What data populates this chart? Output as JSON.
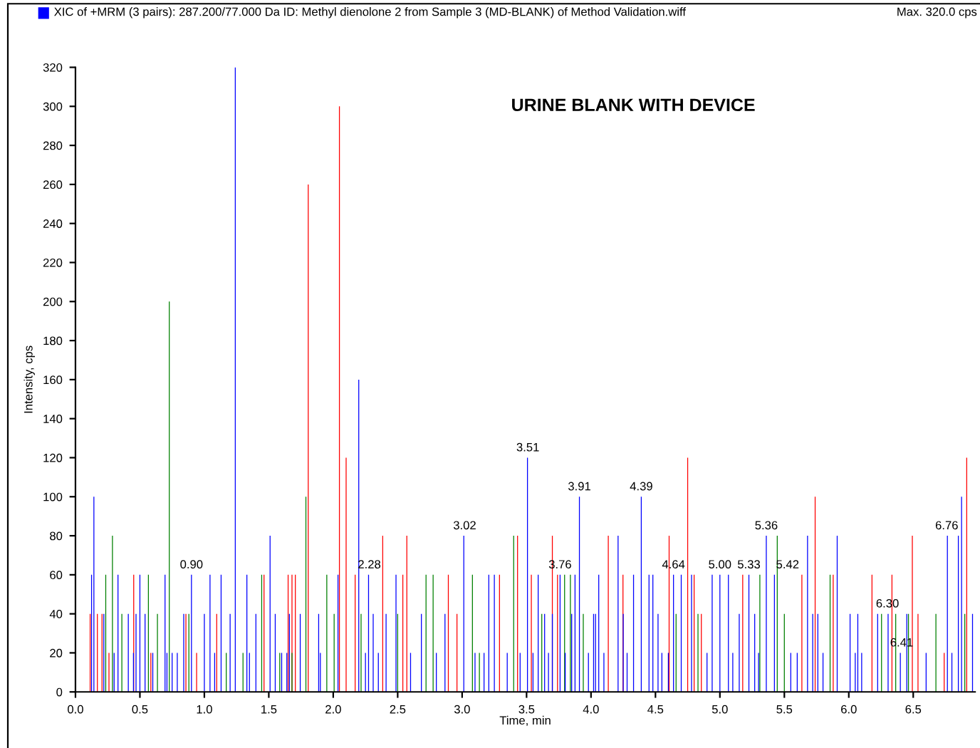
{
  "chart_data": {
    "type": "bar",
    "title": "URINE BLANK WITH DEVICE",
    "xlabel": "Time, min",
    "ylabel": "Intensity, cps",
    "annotations": [
      "XIC of +MRM (3 pairs): 287.200/77.000 Da ID: Methyl dienolone 2 from Sample 3 (MD-BLANK) of Method Validation.wiff",
      "Max. 320.0 cps",
      {
        "text": "0.90",
        "x": 0.9,
        "y": 60
      },
      {
        "text": "2.28",
        "x": 2.28,
        "y": 60
      },
      {
        "text": "3.02",
        "x": 3.02,
        "y": 80
      },
      {
        "text": "3.51",
        "x": 3.51,
        "y": 120
      },
      {
        "text": "3.76",
        "x": 3.76,
        "y": 60
      },
      {
        "text": "3.91",
        "x": 3.91,
        "y": 100
      },
      {
        "text": "4.39",
        "x": 4.39,
        "y": 100
      },
      {
        "text": "4.64",
        "x": 4.64,
        "y": 60
      },
      {
        "text": "5.00",
        "x": 5.0,
        "y": 60
      },
      {
        "text": "5.33",
        "x": 5.33,
        "y": 60
      },
      {
        "text": "5.36",
        "x": 5.36,
        "y": 80
      },
      {
        "text": "5.42",
        "x": 5.42,
        "y": 60
      },
      {
        "text": "6.30",
        "x": 6.3,
        "y": 40
      },
      {
        "text": "6.41",
        "x": 6.41,
        "y": 20
      },
      {
        "text": "6.76",
        "x": 6.76,
        "y": 80
      }
    ],
    "series": [
      {
        "color": "#ff0000",
        "x": [
          0.114,
          0.17,
          0.206,
          0.26,
          0.452,
          0.585,
          0.857,
          0.94,
          1.096,
          1.463,
          1.65,
          1.68,
          1.706,
          1.806,
          2.048,
          2.1,
          2.17,
          2.384,
          2.54,
          2.571,
          2.893,
          2.96,
          3.29,
          3.43,
          3.537,
          3.7,
          3.74,
          4.134,
          4.248,
          4.606,
          4.75,
          4.8,
          4.856,
          5.177,
          5.636,
          5.739,
          5.879,
          6.18,
          6.335,
          6.493,
          6.537,
          6.74,
          6.915
        ],
        "values": [
          40,
          40,
          40,
          20,
          60,
          20,
          40,
          20,
          40,
          60,
          60,
          60,
          60,
          260,
          300,
          120,
          60,
          80,
          60,
          80,
          60,
          40,
          60,
          80,
          60,
          80,
          60,
          80,
          60,
          80,
          120,
          60,
          40,
          60,
          60,
          100,
          60,
          60,
          60,
          80,
          40,
          20,
          120
        ]
      },
      {
        "color": "#008000",
        "x": [
          0.235,
          0.287,
          0.36,
          0.566,
          0.636,
          0.728,
          0.88,
          1.17,
          1.3,
          1.445,
          1.585,
          1.68,
          1.788,
          1.95,
          2.007,
          2.216,
          2.5,
          2.72,
          2.775,
          3.08,
          3.134,
          3.4,
          3.618,
          3.795,
          3.84,
          3.94,
          4.66,
          4.83,
          5.31,
          5.445,
          5.5,
          5.855,
          6.254,
          6.364,
          6.463,
          6.676,
          6.9
        ],
        "values": [
          60,
          80,
          40,
          60,
          40,
          200,
          40,
          20,
          20,
          60,
          20,
          20,
          100,
          60,
          40,
          40,
          40,
          60,
          60,
          60,
          20,
          80,
          40,
          60,
          60,
          40,
          40,
          40,
          60,
          80,
          40,
          60,
          40,
          40,
          40,
          40,
          40
        ]
      },
      {
        "color": "#0000ff",
        "x": [
          0.125,
          0.143,
          0.22,
          0.3,
          0.33,
          0.41,
          0.45,
          0.47,
          0.5,
          0.54,
          0.6,
          0.695,
          0.71,
          0.75,
          0.79,
          0.84,
          0.9,
          1.0,
          1.044,
          1.08,
          1.13,
          1.2,
          1.24,
          1.33,
          1.35,
          1.4,
          1.51,
          1.55,
          1.6,
          1.64,
          1.66,
          1.744,
          1.887,
          1.9,
          2.037,
          2.198,
          2.25,
          2.274,
          2.31,
          2.35,
          2.41,
          2.487,
          2.6,
          2.684,
          2.8,
          2.867,
          3.013,
          3.1,
          3.17,
          3.207,
          3.25,
          3.35,
          3.45,
          3.507,
          3.55,
          3.59,
          3.64,
          3.67,
          3.7,
          3.76,
          3.8,
          3.85,
          3.876,
          3.91,
          3.98,
          4.02,
          4.035,
          4.06,
          4.1,
          4.21,
          4.25,
          4.28,
          4.33,
          4.39,
          4.45,
          4.48,
          4.52,
          4.55,
          4.6,
          4.64,
          4.7,
          4.78,
          4.9,
          4.94,
          5.0,
          5.066,
          5.1,
          5.15,
          5.225,
          5.27,
          5.3,
          5.36,
          5.423,
          5.55,
          5.6,
          5.68,
          5.72,
          5.76,
          5.8,
          5.91,
          6.01,
          6.05,
          6.07,
          6.1,
          6.224,
          6.305,
          6.4,
          6.45,
          6.6,
          6.765,
          6.8,
          6.85,
          6.875,
          6.96
        ],
        "values": [
          60,
          100,
          40,
          20,
          60,
          40,
          20,
          40,
          60,
          40,
          20,
          60,
          20,
          20,
          20,
          40,
          60,
          40,
          60,
          20,
          60,
          40,
          320,
          60,
          20,
          40,
          80,
          40,
          20,
          20,
          40,
          40,
          40,
          20,
          60,
          160,
          20,
          60,
          40,
          20,
          40,
          60,
          20,
          40,
          20,
          40,
          80,
          20,
          20,
          60,
          60,
          20,
          20,
          120,
          20,
          60,
          40,
          20,
          40,
          60,
          20,
          40,
          60,
          100,
          20,
          40,
          40,
          60,
          20,
          80,
          40,
          20,
          60,
          100,
          60,
          60,
          40,
          20,
          20,
          60,
          60,
          60,
          20,
          60,
          60,
          60,
          20,
          40,
          60,
          40,
          20,
          80,
          60,
          20,
          20,
          80,
          40,
          40,
          20,
          80,
          40,
          20,
          40,
          20,
          40,
          40,
          20,
          40,
          20,
          80,
          20,
          80,
          100,
          40
        ]
      }
    ],
    "xlim": [
      0,
      6.98
    ],
    "ylim": [
      0,
      320
    ],
    "xticks": [
      {
        "value": 0,
        "label": "0.0"
      },
      {
        "value": 0.5,
        "label": "0.5"
      },
      {
        "value": 1,
        "label": "1.0"
      },
      {
        "value": 1.5,
        "label": "1.5"
      },
      {
        "value": 2,
        "label": "2.0"
      },
      {
        "value": 2.5,
        "label": "2.5"
      },
      {
        "value": 3,
        "label": "3.0"
      },
      {
        "value": 3.5,
        "label": "3.5"
      },
      {
        "value": 4,
        "label": "4.0"
      },
      {
        "value": 4.5,
        "label": "4.5"
      },
      {
        "value": 5,
        "label": "5.0"
      },
      {
        "value": 5.5,
        "label": "5.5"
      },
      {
        "value": 6,
        "label": "6.0"
      },
      {
        "value": 6.5,
        "label": "6.5"
      }
    ],
    "yticks": [
      0,
      20,
      40,
      60,
      80,
      100,
      120,
      140,
      160,
      180,
      200,
      220,
      240,
      260,
      280,
      300,
      320
    ]
  }
}
